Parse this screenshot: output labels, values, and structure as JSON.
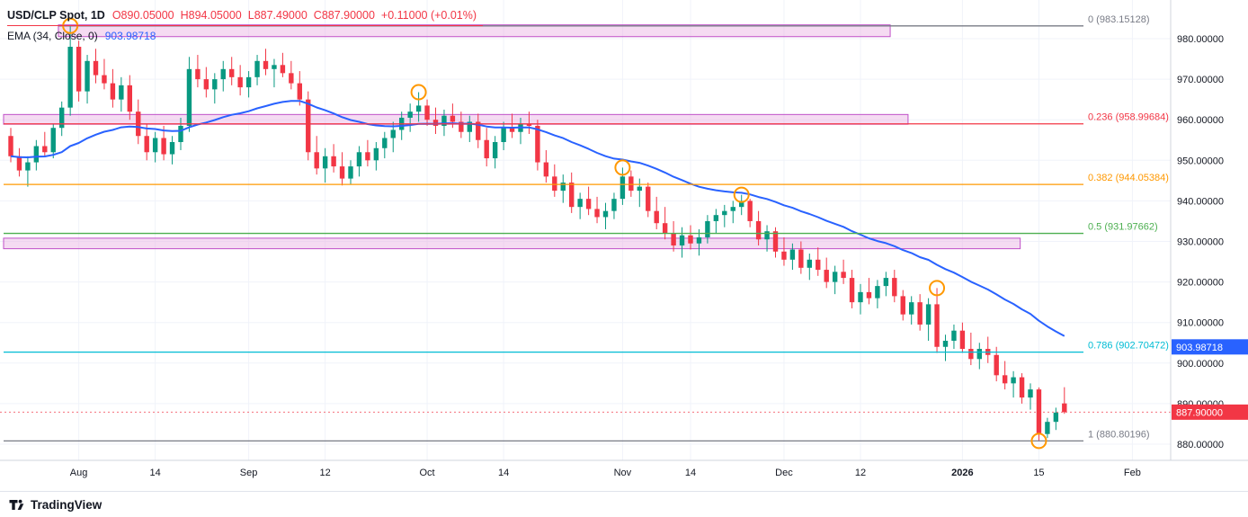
{
  "header": {
    "symbol_title": "USD/CLP Spot, 1D",
    "open": "O890.05000",
    "high": "H894.05000",
    "low": "L887.49000",
    "close": "C887.90000",
    "change": "+0.11000 (+0.01%)",
    "ema_label": "EMA (34, Close, 0)",
    "ema_value": "903.98718"
  },
  "footer": {
    "brand": "TradingView"
  },
  "colors": {
    "background": "#ffffff",
    "candle_up": "#089981",
    "candle_down": "#f23645",
    "ema": "#2962ff",
    "marker": "#ff9800",
    "grid": "#f0f3fa",
    "axis_text": "#131722",
    "separator": "#d1d4dc",
    "zone_fill": "rgba(233,175,226,0.45)",
    "zone_stroke": "#c050c8"
  },
  "chart_data": {
    "type": "candlestick",
    "title": "USD/CLP Spot, 1D",
    "interval": "1D",
    "last_ohlc": {
      "open": 890.05,
      "high": 894.05,
      "low": 887.49,
      "close": 887.9,
      "change": 0.11,
      "change_pct": 0.01
    },
    "current_price": 887.9,
    "ema": {
      "period": 34,
      "source": "Close",
      "offset": 0,
      "value": 903.98718,
      "color": "#2962ff"
    },
    "ylim": [
      877,
      986
    ],
    "y_ticks": [
      980,
      970,
      960,
      950,
      940,
      930,
      920,
      910,
      900,
      890,
      880
    ],
    "x_ticks": [
      {
        "i": 8,
        "label": "Aug"
      },
      {
        "i": 17,
        "label": "14"
      },
      {
        "i": 28,
        "label": "Sep"
      },
      {
        "i": 37,
        "label": "12"
      },
      {
        "i": 49,
        "label": "Oct"
      },
      {
        "i": 58,
        "label": "14"
      },
      {
        "i": 72,
        "label": "Nov"
      },
      {
        "i": 80,
        "label": "14"
      },
      {
        "i": 91,
        "label": "Dec"
      },
      {
        "i": 100,
        "label": "12"
      },
      {
        "i": 112,
        "label": "2026",
        "bold": true
      },
      {
        "i": 121,
        "label": "15"
      },
      {
        "i": 132,
        "label": "Feb"
      }
    ],
    "fib_retracement": {
      "levels": [
        {
          "level": 0,
          "price": 983.15128,
          "label": "0 (983.15128)",
          "color": "#787b86"
        },
        {
          "level": 0.236,
          "price": 958.99684,
          "label": "0.236 (958.99684)",
          "color": "#f23645"
        },
        {
          "level": 0.382,
          "price": 944.05384,
          "label": "0.382 (944.05384)",
          "color": "#ff9800"
        },
        {
          "level": 0.5,
          "price": 931.97662,
          "label": "0.5 (931.97662)",
          "color": "#4caf50"
        },
        {
          "level": 0.786,
          "price": 902.70472,
          "label": "0.786 (902.70472)",
          "color": "#00bcd4"
        },
        {
          "level": 1,
          "price": 880.80196,
          "label": "1 (880.80196)",
          "color": "#787b86"
        }
      ]
    },
    "zones": [
      {
        "x_start_i": 5.6,
        "x_end_i": 103.5,
        "price_top": 983.4,
        "price_bottom": 980.5,
        "fill": "rgba(233,175,226,0.45)",
        "stroke": "#c050c8"
      },
      {
        "x_start_i": -0.85,
        "x_end_i": 105.6,
        "price_top": 961.3,
        "price_bottom": 958.9,
        "fill": "rgba(233,175,226,0.45)",
        "stroke": "#c050c8"
      },
      {
        "x_start_i": -0.85,
        "x_end_i": 118.8,
        "price_top": 930.8,
        "price_bottom": 928.2,
        "fill": "rgba(233,175,226,0.45)",
        "stroke": "#c050c8"
      }
    ],
    "markers": [
      {
        "i": 7,
        "price": 983.15
      },
      {
        "i": 48,
        "price": 966.8
      },
      {
        "i": 72,
        "price": 948.2
      },
      {
        "i": 86,
        "price": 941.5
      },
      {
        "i": 109,
        "price": 918.5
      },
      {
        "i": 121,
        "price": 880.8
      }
    ],
    "candles": [
      [
        956,
        958,
        949.5,
        951
      ],
      [
        951,
        953,
        946,
        947.5
      ],
      [
        947.5,
        951,
        943.5,
        949.5
      ],
      [
        949.5,
        955,
        947.5,
        953.5
      ],
      [
        953.5,
        957,
        951,
        952
      ],
      [
        952,
        959,
        950.5,
        958
      ],
      [
        958,
        964.5,
        956,
        963
      ],
      [
        963,
        983.2,
        961,
        978
      ],
      [
        978,
        979.5,
        964.5,
        967
      ],
      [
        967,
        976,
        964,
        974.5
      ],
      [
        974.5,
        977.5,
        969,
        971
      ],
      [
        971,
        975,
        967.5,
        969
      ],
      [
        969,
        972.5,
        963,
        965
      ],
      [
        965,
        970.5,
        962,
        968.5
      ],
      [
        968.5,
        971,
        960,
        962
      ],
      [
        962,
        965,
        954,
        956
      ],
      [
        956,
        959,
        950,
        952
      ],
      [
        952,
        957,
        949.5,
        955.5
      ],
      [
        955.5,
        958.5,
        950,
        951.5
      ],
      [
        951.5,
        956,
        949,
        954.5
      ],
      [
        954.5,
        960.5,
        952.5,
        958.5
      ],
      [
        958.5,
        975.5,
        957,
        972.5
      ],
      [
        972.5,
        976,
        968,
        970
      ],
      [
        970,
        973,
        965.5,
        967.5
      ],
      [
        967.5,
        971.5,
        964,
        970
      ],
      [
        970,
        974.5,
        967,
        972.5
      ],
      [
        972.5,
        975.5,
        968.5,
        970.5
      ],
      [
        970.5,
        973.5,
        966,
        968
      ],
      [
        968,
        972,
        965.5,
        970.5
      ],
      [
        970.5,
        976,
        968.5,
        974.5
      ],
      [
        974.5,
        977.5,
        971,
        972.5
      ],
      [
        972.5,
        975,
        968,
        973.5
      ],
      [
        973.5,
        976.5,
        970.5,
        971.5
      ],
      [
        971.5,
        974.5,
        967.5,
        969
      ],
      [
        969,
        972,
        963.5,
        965
      ],
      [
        965,
        967,
        950,
        952
      ],
      [
        952,
        956,
        946.5,
        948
      ],
      [
        948,
        953,
        944.5,
        951
      ],
      [
        951,
        954,
        947,
        948.5
      ],
      [
        948.5,
        952,
        943.8,
        945.5
      ],
      [
        945.5,
        950,
        944,
        948.5
      ],
      [
        948.5,
        953.5,
        946,
        952
      ],
      [
        952,
        955,
        948.5,
        950
      ],
      [
        950,
        954.5,
        947.5,
        953
      ],
      [
        953,
        957,
        950.5,
        955.5
      ],
      [
        955.5,
        959.5,
        952,
        957.5
      ],
      [
        957.5,
        962,
        955,
        960.5
      ],
      [
        960.5,
        964,
        957,
        962
      ],
      [
        962,
        966.8,
        959.5,
        963.5
      ],
      [
        963.5,
        965,
        958.5,
        960
      ],
      [
        960,
        963,
        956.5,
        958.5
      ],
      [
        958.5,
        962.5,
        956,
        961
      ],
      [
        961,
        964,
        958,
        959.5
      ],
      [
        959.5,
        962,
        955.5,
        957
      ],
      [
        957,
        961,
        954.5,
        959.5
      ],
      [
        959.5,
        961.5,
        953,
        955
      ],
      [
        955,
        958,
        948.5,
        950.5
      ],
      [
        950.5,
        956,
        948,
        954.5
      ],
      [
        954.5,
        959.5,
        952.5,
        958
      ],
      [
        958,
        961.5,
        955.5,
        957
      ],
      [
        957,
        960.5,
        954,
        959
      ],
      [
        959,
        962,
        956.5,
        958.5
      ],
      [
        958.5,
        960,
        947.5,
        949.5
      ],
      [
        949.5,
        952.5,
        944.5,
        946
      ],
      [
        946,
        949,
        941,
        942.5
      ],
      [
        942.5,
        946.5,
        939.5,
        944.5
      ],
      [
        944.5,
        947,
        937,
        938.5
      ],
      [
        938.5,
        942,
        935.5,
        940.5
      ],
      [
        940.5,
        943.5,
        936.5,
        938
      ],
      [
        938,
        941,
        934.5,
        936
      ],
      [
        936,
        939.5,
        933,
        937.5
      ],
      [
        937.5,
        942,
        935.5,
        940.5
      ],
      [
        940.5,
        948.2,
        939,
        946
      ],
      [
        946,
        947.5,
        941,
        942.5
      ],
      [
        942.5,
        945.5,
        938.5,
        943.5
      ],
      [
        943.5,
        944.5,
        936,
        937.5
      ],
      [
        937.5,
        941,
        933,
        934.5
      ],
      [
        934.5,
        938.5,
        930.5,
        932
      ],
      [
        932,
        935,
        927.5,
        929
      ],
      [
        929,
        933.5,
        926,
        931.5
      ],
      [
        931.5,
        934,
        928,
        929.5
      ],
      [
        929.5,
        933,
        926.5,
        931
      ],
      [
        931,
        936.5,
        929.5,
        935
      ],
      [
        935,
        938,
        932,
        936.5
      ],
      [
        936.5,
        939,
        933.5,
        937.5
      ],
      [
        937.5,
        940,
        934.5,
        938.5
      ],
      [
        938.5,
        941.5,
        936.5,
        940
      ],
      [
        940,
        940.5,
        933.5,
        935
      ],
      [
        935,
        937.5,
        929,
        930.5
      ],
      [
        930.5,
        934,
        927.5,
        932.5
      ],
      [
        932.5,
        933.5,
        926,
        927.5
      ],
      [
        927.5,
        931,
        924,
        925.5
      ],
      [
        925.5,
        929.5,
        923,
        928
      ],
      [
        928,
        930,
        922,
        923.5
      ],
      [
        923.5,
        927,
        920.5,
        925.5
      ],
      [
        925.5,
        928.5,
        921.5,
        923
      ],
      [
        923,
        926,
        918.5,
        920
      ],
      [
        920,
        924,
        917,
        922.5
      ],
      [
        922.5,
        925.5,
        919.5,
        921
      ],
      [
        921,
        923,
        913.5,
        915
      ],
      [
        915,
        919.5,
        912,
        917.5
      ],
      [
        917.5,
        921,
        914.5,
        916
      ],
      [
        916,
        920.5,
        913.5,
        919
      ],
      [
        919,
        922.5,
        916.5,
        921
      ],
      [
        921,
        923,
        915,
        916.5
      ],
      [
        916.5,
        918,
        910.5,
        912
      ],
      [
        912,
        916.5,
        909.5,
        915
      ],
      [
        915,
        917,
        908,
        909.5
      ],
      [
        909.5,
        916,
        905.5,
        914.5
      ],
      [
        914.5,
        918.5,
        902.5,
        904
      ],
      [
        904,
        907,
        900.5,
        905.5
      ],
      [
        905.5,
        909.5,
        903.5,
        908
      ],
      [
        908,
        910,
        902.5,
        903.5
      ],
      [
        903.5,
        907.5,
        899.5,
        901
      ],
      [
        901,
        905,
        898.5,
        903.5
      ],
      [
        903.5,
        906.5,
        900,
        902
      ],
      [
        902,
        904,
        895.5,
        897
      ],
      [
        897,
        900.5,
        893.5,
        895
      ],
      [
        895,
        898,
        891.5,
        896.5
      ],
      [
        896.5,
        897.5,
        890,
        891.5
      ],
      [
        891.5,
        895,
        888.5,
        893.5
      ],
      [
        893.5,
        894,
        880.8,
        882.5
      ],
      [
        882.5,
        886.5,
        881.5,
        885.5
      ],
      [
        885.5,
        889,
        883.5,
        887.79
      ],
      [
        890.05,
        894.05,
        887.49,
        887.9
      ]
    ]
  }
}
